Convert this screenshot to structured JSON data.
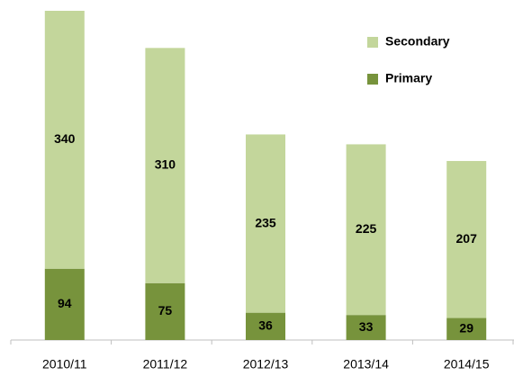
{
  "chart_data": {
    "type": "stacked_bar",
    "categories": [
      "2010/11",
      "2011/12",
      "2012/13",
      "2013/14",
      "2014/15"
    ],
    "series": [
      {
        "name": "Primary",
        "color": "#77933c",
        "values": [
          94,
          75,
          36,
          33,
          29
        ]
      },
      {
        "name": "Secondary",
        "color": "#c3d69b",
        "values": [
          340,
          310,
          235,
          225,
          207
        ]
      }
    ],
    "legend": "upper right"
  }
}
